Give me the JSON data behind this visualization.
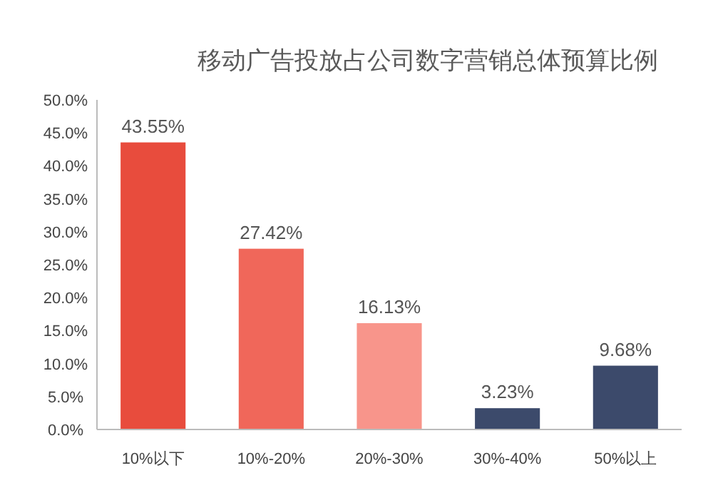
{
  "chart_data": {
    "type": "bar",
    "title": "移动广告投放占公司数字营销总体预算比例",
    "categories": [
      "10%以下",
      "10%-20%",
      "20%-30%",
      "30%-40%",
      "50%以上"
    ],
    "values": [
      43.55,
      27.42,
      16.13,
      3.23,
      9.68
    ],
    "colors": [
      "#e84c3d",
      "#f0675a",
      "#f8958b",
      "#3c4a6b",
      "#3c4a6b"
    ],
    "value_labels": [
      "43.55%",
      "27.42%",
      "16.13%",
      "3.23%",
      "9.68%"
    ],
    "ylim": [
      0,
      50
    ],
    "yticks": [
      {
        "value": 0,
        "label": "0.0%"
      },
      {
        "value": 5,
        "label": "5.0%"
      },
      {
        "value": 10,
        "label": "10.0%"
      },
      {
        "value": 15,
        "label": "15.0%"
      },
      {
        "value": 20,
        "label": "20.0%"
      },
      {
        "value": 25,
        "label": "25.0%"
      },
      {
        "value": 30,
        "label": "30.0%"
      },
      {
        "value": 35,
        "label": "35.0%"
      },
      {
        "value": 40,
        "label": "40.0%"
      },
      {
        "value": 45,
        "label": "45.0%"
      },
      {
        "value": 50,
        "label": "50.0%"
      }
    ],
    "grid": false
  }
}
